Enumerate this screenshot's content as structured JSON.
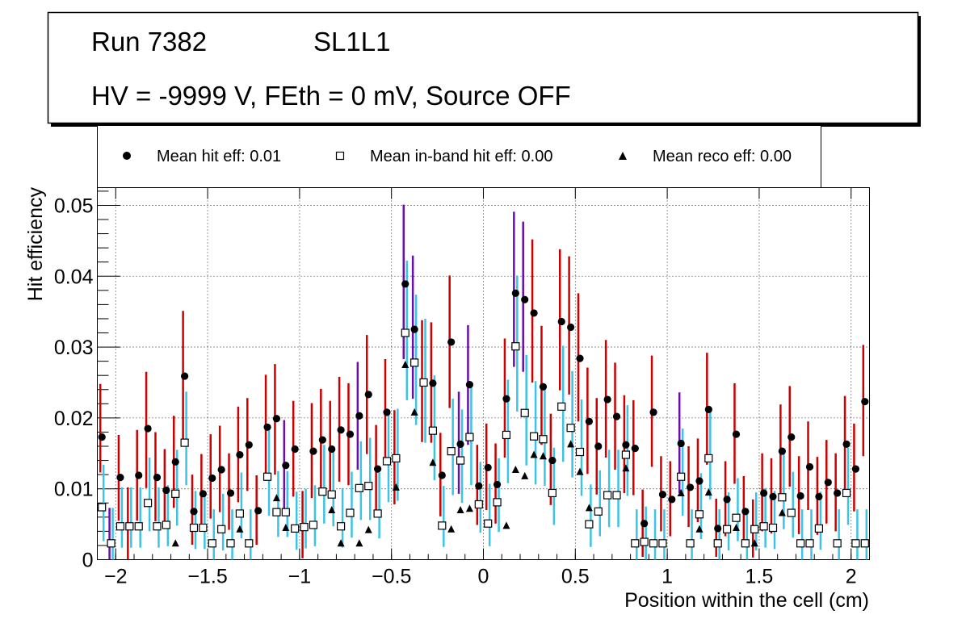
{
  "header": {
    "run": "Run 7382",
    "layer": "SL1L1",
    "conditions": "HV = -9999 V, FEth = 0 mV, Source OFF"
  },
  "legend": {
    "hit": "Mean hit  eff: 0.01",
    "inband": "Mean in-band hit eff: 0.00",
    "reco": "Mean reco eff: 0.00"
  },
  "colors": {
    "hit_err": "#cc0000",
    "hit_err_alt": "#6a0dad",
    "inband_err": "#3cc3e6",
    "marker": "#000000",
    "grid": "#000000"
  },
  "chart_data": {
    "type": "scatter",
    "title": "",
    "xlabel": "Position within the cell (cm)",
    "ylabel": "Hit efficiency",
    "xlim": [
      -2.1,
      2.1
    ],
    "ylim": [
      0,
      0.0525
    ],
    "xticks": [
      -2,
      -1.5,
      -1,
      -0.5,
      0,
      0.5,
      1,
      1.5,
      2
    ],
    "xtick_labels": [
      "−2",
      "−1.5",
      "−1",
      "−0.5",
      "0",
      "0.5",
      "1",
      "1.5",
      "2"
    ],
    "yticks": [
      0,
      0.01,
      0.02,
      0.03,
      0.04,
      0.05
    ],
    "ytick_labels": [
      "0",
      "0.01",
      "0.02",
      "0.03",
      "0.04",
      "0.05"
    ],
    "grid": true,
    "x": [
      -2.075,
      -2.025,
      -1.975,
      -1.925,
      -1.875,
      -1.825,
      -1.775,
      -1.725,
      -1.675,
      -1.625,
      -1.575,
      -1.525,
      -1.475,
      -1.425,
      -1.375,
      -1.325,
      -1.275,
      -1.225,
      -1.175,
      -1.125,
      -1.075,
      -1.025,
      -0.975,
      -0.925,
      -0.875,
      -0.825,
      -0.775,
      -0.725,
      -0.675,
      -0.625,
      -0.575,
      -0.525,
      -0.475,
      -0.425,
      -0.375,
      -0.325,
      -0.275,
      -0.225,
      -0.175,
      -0.125,
      -0.075,
      -0.025,
      0.025,
      0.075,
      0.125,
      0.175,
      0.225,
      0.275,
      0.325,
      0.375,
      0.425,
      0.475,
      0.525,
      0.575,
      0.625,
      0.675,
      0.725,
      0.775,
      0.825,
      0.875,
      0.925,
      0.975,
      1.025,
      1.075,
      1.125,
      1.175,
      1.225,
      1.275,
      1.325,
      1.375,
      1.425,
      1.475,
      1.525,
      1.575,
      1.625,
      1.675,
      1.725,
      1.775,
      1.825,
      1.875,
      1.925,
      1.975,
      2.025,
      2.075
    ],
    "series": [
      {
        "name": "Mean hit  eff: 0.01",
        "marker": "filled-circle",
        "values": [
          0.0173,
          0.0023,
          0.0116,
          0.0047,
          0.0119,
          0.0185,
          0.0116,
          0.0098,
          0.0138,
          0.0259,
          0.0068,
          0.0093,
          0.0115,
          0.0127,
          0.0094,
          0.0148,
          0.0162,
          0.0069,
          0.0187,
          0.0199,
          0.0133,
          0.0156,
          0.0047,
          0.0153,
          0.0169,
          0.0156,
          0.0183,
          0.0177,
          0.0203,
          0.0233,
          0.0128,
          0.0208,
          0.0143,
          0.0389,
          0.0325,
          0.025,
          0.0249,
          0.0119,
          0.0307,
          0.0163,
          0.0247,
          0.0104,
          0.013,
          0.0106,
          0.0227,
          0.0376,
          0.0367,
          0.0348,
          0.0244,
          0.014,
          0.0336,
          0.0328,
          0.0284,
          0.0195,
          0.016,
          0.0226,
          0.0202,
          0.0162,
          0.0157,
          0.0051,
          0.0208,
          0.0092,
          0.0085,
          0.0164,
          0.0102,
          0.0111,
          0.0212,
          0.0044,
          0.0085,
          0.0177,
          0.0068,
          0.0043,
          0.0094,
          0.0089,
          0.0153,
          0.0173,
          0.009,
          0.0131,
          0.0089,
          0.0109,
          0.0094,
          0.0163,
          0.0128,
          0.0223
        ]
      },
      {
        "name": "Mean in-band hit eff: 0.00",
        "marker": "open-square",
        "values": [
          0.0074,
          0.0023,
          0.0047,
          0.0047,
          0.0047,
          0.008,
          0.0047,
          0.0049,
          0.0093,
          0.0165,
          0.0045,
          0.0045,
          0.0023,
          0.0043,
          0.0023,
          0.0065,
          0.0023,
          0.0,
          0.0117,
          0.0067,
          0.0067,
          0.0044,
          0.0046,
          0.0049,
          0.0096,
          0.0092,
          0.0047,
          0.0066,
          0.0101,
          0.0104,
          0.0065,
          0.0139,
          0.0143,
          0.032,
          0.0278,
          0.025,
          0.0182,
          0.0048,
          0.0153,
          0.014,
          0.0173,
          0.0078,
          0.0051,
          0.0081,
          0.0176,
          0.0301,
          0.0207,
          0.0174,
          0.017,
          0.0094,
          0.0216,
          0.0186,
          0.0152,
          0.005,
          0.0068,
          0.0091,
          0.0091,
          0.0148,
          0.0023,
          0.0025,
          0.0023,
          0.0023,
          0.0,
          0.0117,
          0.0023,
          0.0064,
          0.0143,
          0.0023,
          0.0043,
          0.0059,
          0.0023,
          0.0043,
          0.0047,
          0.0045,
          0.0088,
          0.0066,
          0.0023,
          0.0023,
          0.0044,
          0.0,
          0.0023,
          0.0094,
          0.0023,
          0.0023
        ]
      },
      {
        "name": "Mean reco eff: 0.00",
        "marker": "filled-triangle",
        "values": [
          0.0074,
          0.0023,
          0.0047,
          0.0047,
          0.0047,
          0.008,
          0.0047,
          0.0049,
          0.0023,
          0.0165,
          0.0045,
          0.0045,
          0.0023,
          0.0043,
          0.0023,
          0.0043,
          0.0023,
          0.0,
          0.0117,
          0.0087,
          0.0045,
          0.0044,
          0.0046,
          0.0049,
          0.0096,
          0.007,
          0.0023,
          0.0066,
          0.0023,
          0.0042,
          0.0065,
          0.0,
          0.0102,
          0.0275,
          0.0208,
          0.025,
          0.0137,
          0.0,
          0.0043,
          0.007,
          0.0072,
          0.0,
          0.0,
          0.0,
          0.0048,
          0.0127,
          0.0118,
          0.0148,
          0.0146,
          0.0094,
          0.0216,
          0.0163,
          0.0124,
          0.0073,
          0.0068,
          0.0091,
          0.0091,
          0.0129,
          0.0023,
          0.0025,
          0.0023,
          0.0023,
          0.0,
          0.0094,
          0.0023,
          0.0043,
          0.0095,
          0.0023,
          0.0043,
          0.0045,
          0.0023,
          0.0023,
          0.0047,
          0.0045,
          0.0066,
          0.0066,
          0.0,
          0.0023,
          0.0044,
          0.0,
          0.0023,
          0.0094,
          0.0023,
          0.0023
        ]
      }
    ],
    "hit_err_lo": [
      0.005,
      0.005,
      0.0061,
      0.005,
      0.0064,
      0.0084,
      0.0062,
      0.0054,
      0.0065,
      0.009,
      0.0047,
      0.0053,
      0.0057,
      0.006,
      0.0052,
      0.0067,
      0.0065,
      0.0048,
      0.0076,
      0.0079,
      0.0062,
      0.0067,
      0.0045,
      0.0066,
      0.007,
      0.0065,
      0.0073,
      0.0072,
      0.0076,
      0.0084,
      0.0059,
      0.0073,
      0.0065,
      0.0106,
      0.0098,
      0.0084,
      0.0084,
      0.0058,
      0.0093,
      0.007,
      0.0085,
      0.0055,
      0.006,
      0.0055,
      0.0083,
      0.0104,
      0.0102,
      0.0098,
      0.0082,
      0.0063,
      0.0097,
      0.0095,
      0.0089,
      0.0074,
      0.0068,
      0.0082,
      0.0075,
      0.0068,
      0.0066,
      0.0047,
      0.0077,
      0.0052,
      0.0052,
      0.007,
      0.0056,
      0.0058,
      0.0078,
      0.004,
      0.0052,
      0.007,
      0.0048,
      0.004,
      0.0054,
      0.0052,
      0.0064,
      0.007,
      0.0054,
      0.0061,
      0.0054,
      0.0058,
      0.0054,
      0.0066,
      0.006,
      0.0077
    ],
    "hit_err_hi": [
      0.0075,
      0.005,
      0.006,
      0.0055,
      0.0064,
      0.008,
      0.0064,
      0.0058,
      0.0065,
      0.0092,
      0.0052,
      0.0056,
      0.0062,
      0.0062,
      0.0056,
      0.0068,
      0.0066,
      0.005,
      0.0074,
      0.0077,
      0.0064,
      0.0068,
      0.005,
      0.0068,
      0.0072,
      0.0068,
      0.0075,
      0.0072,
      0.0076,
      0.0084,
      0.0062,
      0.0075,
      0.0068,
      0.0112,
      0.0104,
      0.0088,
      0.0086,
      0.006,
      0.0094,
      0.0074,
      0.0084,
      0.0058,
      0.0062,
      0.0058,
      0.0085,
      0.0115,
      0.011,
      0.0104,
      0.0086,
      0.0066,
      0.0102,
      0.01,
      0.0092,
      0.0076,
      0.0068,
      0.0084,
      0.0076,
      0.007,
      0.0068,
      0.0048,
      0.008,
      0.0054,
      0.0054,
      0.0072,
      0.0058,
      0.006,
      0.008,
      0.0042,
      0.0054,
      0.0072,
      0.005,
      0.0042,
      0.0056,
      0.0054,
      0.0066,
      0.0072,
      0.0056,
      0.0064,
      0.0056,
      0.006,
      0.0056,
      0.0068,
      0.0064,
      0.008
    ],
    "hit_err_alt_index": [
      1,
      20,
      28,
      33,
      34,
      39,
      40,
      45,
      46,
      63
    ],
    "inband_err_lo": [
      0.0048,
      0.0023,
      0.003,
      0.003,
      0.003,
      0.004,
      0.003,
      0.003,
      0.0045,
      0.006,
      0.003,
      0.003,
      0.0023,
      0.003,
      0.0023,
      0.0035,
      0.0023,
      0.0,
      0.0055,
      0.0035,
      0.0035,
      0.003,
      0.003,
      0.003,
      0.0045,
      0.0045,
      0.003,
      0.0035,
      0.0045,
      0.0048,
      0.0035,
      0.0058,
      0.006,
      0.0095,
      0.0088,
      0.0085,
      0.007,
      0.003,
      0.0062,
      0.006,
      0.0068,
      0.004,
      0.0032,
      0.0042,
      0.0068,
      0.0092,
      0.0074,
      0.0068,
      0.0066,
      0.0045,
      0.0078,
      0.007,
      0.0062,
      0.0032,
      0.0035,
      0.0045,
      0.0045,
      0.0058,
      0.0023,
      0.0025,
      0.0023,
      0.0023,
      0.0,
      0.0055,
      0.0023,
      0.0035,
      0.0058,
      0.0023,
      0.003,
      0.0033,
      0.0023,
      0.003,
      0.003,
      0.003,
      0.0045,
      0.0035,
      0.0023,
      0.0023,
      0.003,
      0.0,
      0.0023,
      0.0045,
      0.0023,
      0.0023
    ],
    "inband_err_hi": [
      0.006,
      0.005,
      0.0055,
      0.0055,
      0.0055,
      0.0064,
      0.0055,
      0.0056,
      0.0062,
      0.0072,
      0.0052,
      0.0052,
      0.0048,
      0.005,
      0.0048,
      0.0058,
      0.0048,
      0.0,
      0.0068,
      0.0058,
      0.0058,
      0.0052,
      0.0054,
      0.0056,
      0.0066,
      0.0064,
      0.0054,
      0.0058,
      0.0066,
      0.0068,
      0.0058,
      0.007,
      0.007,
      0.0102,
      0.0096,
      0.009,
      0.0078,
      0.0056,
      0.0074,
      0.0072,
      0.0078,
      0.006,
      0.0056,
      0.0062,
      0.0078,
      0.01,
      0.0082,
      0.0078,
      0.0076,
      0.0064,
      0.0086,
      0.008,
      0.0074,
      0.0056,
      0.0058,
      0.0064,
      0.0064,
      0.007,
      0.0048,
      0.005,
      0.0048,
      0.0048,
      0.0,
      0.0068,
      0.0048,
      0.0058,
      0.007,
      0.0048,
      0.0052,
      0.0056,
      0.0048,
      0.0052,
      0.0054,
      0.0052,
      0.0064,
      0.0058,
      0.0048,
      0.0048,
      0.0052,
      0.0,
      0.0048,
      0.0064,
      0.0048,
      0.0048
    ]
  }
}
